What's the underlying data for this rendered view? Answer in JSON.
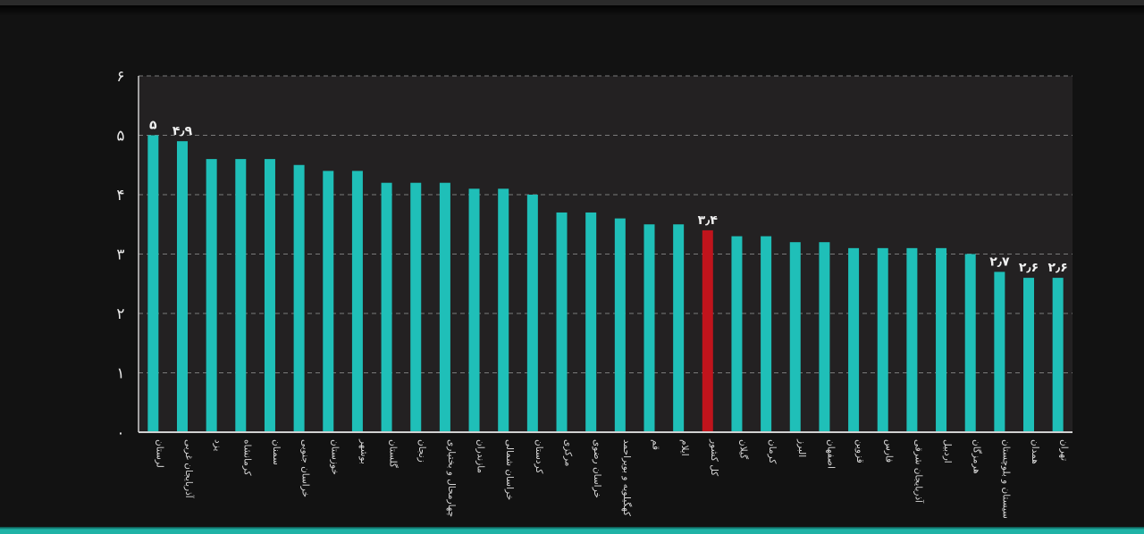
{
  "chart_data": {
    "type": "bar",
    "title": "",
    "xlabel": "",
    "ylabel": "",
    "ylim": [
      0,
      6
    ],
    "grid": true,
    "legend": "none",
    "y_ticks": [
      0,
      1,
      2,
      3,
      4,
      5,
      6
    ],
    "y_tick_labels": [
      "۰",
      "۱",
      "۲",
      "۳",
      "۴",
      "۵",
      "۶"
    ],
    "categories": [
      "لرستان",
      "آذربایجان غربی",
      "یزد",
      "کرمانشاه",
      "سمنان",
      "خراسان جنوبی",
      "خوزستان",
      "بوشهر",
      "گلستان",
      "زنجان",
      "چهارمحال و بختیاری",
      "مازندران",
      "خراسان شمالی",
      "کردستان",
      "مرکزی",
      "خراسان رضوی",
      "کهگیلویه و بویراحمد",
      "قم",
      "ایلام",
      "کل کشور",
      "گیلان",
      "کرمان",
      "البرز",
      "اصفهان",
      "قزوین",
      "فارس",
      "آذربایجان شرقی",
      "اردبیل",
      "هرمزگان",
      "سیستان و بلوچستان",
      "همدان",
      "تهران"
    ],
    "values": [
      5.0,
      4.9,
      4.6,
      4.6,
      4.6,
      4.5,
      4.4,
      4.4,
      4.2,
      4.2,
      4.2,
      4.1,
      4.1,
      4.0,
      3.7,
      3.7,
      3.6,
      3.5,
      3.5,
      3.4,
      3.3,
      3.3,
      3.2,
      3.2,
      3.1,
      3.1,
      3.1,
      3.1,
      3.0,
      2.7,
      2.6,
      2.6
    ],
    "highlight_index": 19,
    "data_labels": [
      {
        "index": 0,
        "text": "۵"
      },
      {
        "index": 1,
        "text": "۴٫۹"
      },
      {
        "index": 19,
        "text": "۳٫۴"
      },
      {
        "index": 29,
        "text": "۲٫۷"
      },
      {
        "index": 30,
        "text": "۲٫۶"
      },
      {
        "index": 31,
        "text": "۲٫۶"
      }
    ],
    "colors": {
      "bar": "#1fbfb8",
      "highlight": "#c0141c",
      "plot_bg": "#232122",
      "grid": "#7a7a7a",
      "axis": "#d0d0d0"
    }
  }
}
